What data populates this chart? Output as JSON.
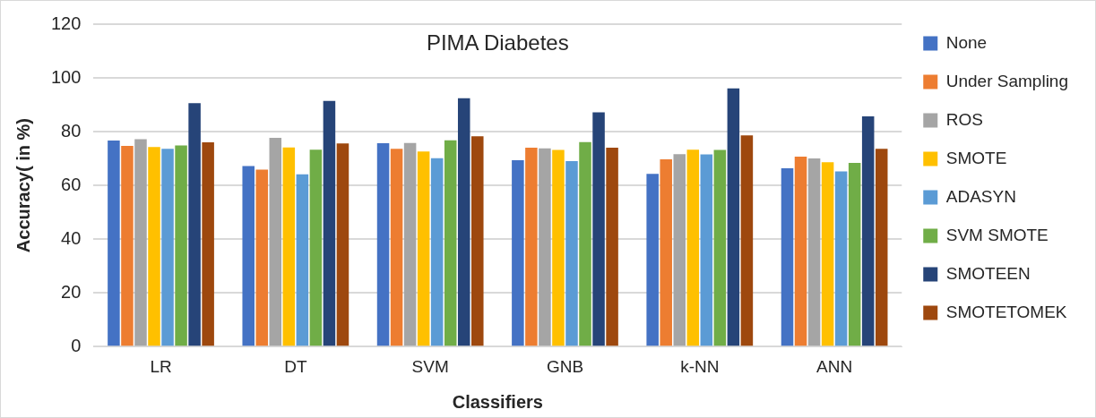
{
  "chart_data": {
    "type": "bar",
    "title": "PIMA Diabetes",
    "xlabel": "Classifiers",
    "ylabel": "Accuracy( in %)",
    "categories": [
      "LR",
      "DT",
      "SVM",
      "GNB",
      "k-NN",
      "ANN"
    ],
    "series": [
      {
        "name": "None",
        "color": "#4472c4",
        "values": [
          76.7,
          67.2,
          75.7,
          69.4,
          64.3,
          66.4
        ]
      },
      {
        "name": "Under Sampling",
        "color": "#ed7d31",
        "values": [
          74.7,
          65.9,
          73.6,
          74.0,
          69.7,
          70.7
        ]
      },
      {
        "name": "ROS",
        "color": "#a5a5a5",
        "values": [
          77.2,
          77.7,
          75.8,
          73.8,
          71.6,
          70.0
        ]
      },
      {
        "name": "SMOTE",
        "color": "#ffc000",
        "values": [
          74.3,
          74.1,
          72.6,
          73.2,
          73.3,
          68.6
        ]
      },
      {
        "name": "ADASYN",
        "color": "#5b9bd5",
        "values": [
          73.6,
          64.1,
          70.1,
          69.0,
          71.5,
          65.2
        ]
      },
      {
        "name": "SVM SMOTE",
        "color": "#70ad47",
        "values": [
          74.9,
          73.3,
          76.8,
          76.1,
          73.2,
          68.4
        ]
      },
      {
        "name": "SMOTEEN",
        "color": "#264478",
        "values": [
          90.6,
          91.4,
          92.4,
          87.2,
          96.1,
          85.7
        ]
      },
      {
        "name": "SMOTETOMEK",
        "color": "#9e480e",
        "values": [
          76.0,
          75.6,
          78.3,
          74.0,
          78.6,
          73.6
        ]
      }
    ],
    "ylim": [
      0,
      120
    ],
    "yticks": [
      0,
      20,
      40,
      60,
      80,
      100,
      120
    ],
    "grid": "y",
    "legend": "right"
  }
}
